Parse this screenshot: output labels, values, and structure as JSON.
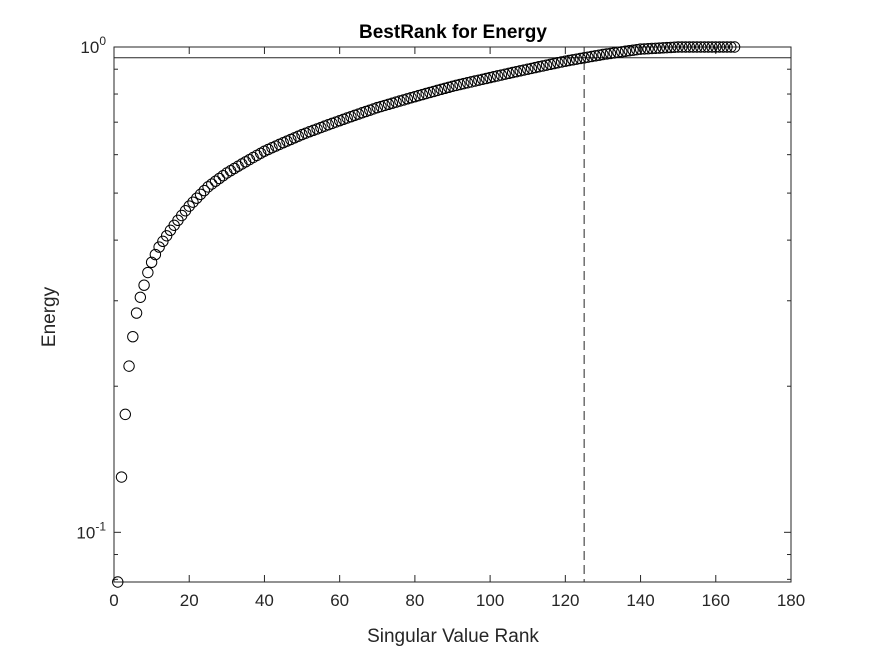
{
  "chart_data": {
    "type": "scatter",
    "title": "BestRank for Energy",
    "xlabel": "Singular Value Rank",
    "ylabel": "Energy",
    "xlim": [
      0,
      180
    ],
    "ylim": [
      0.079,
      1.0
    ],
    "yscale": "log",
    "grid": false,
    "x_ticks": [
      0,
      20,
      40,
      60,
      80,
      100,
      120,
      140,
      160,
      180
    ],
    "y_ticks": [
      {
        "value": 0.1,
        "base": "10",
        "exp": "-1"
      },
      {
        "value": 1.0,
        "base": "10",
        "exp": "0"
      }
    ],
    "marker": "open-circle",
    "marker_color": "#000000",
    "point_count": 165,
    "y_formula_note_hidden": true,
    "anchor_points": {
      "x": [
        1,
        2,
        3,
        4,
        5,
        6,
        7,
        8,
        9,
        10,
        12,
        15,
        20,
        25,
        30,
        40,
        50,
        60,
        70,
        80,
        90,
        100,
        110,
        120,
        125,
        130,
        140,
        150,
        155,
        160,
        165
      ],
      "y": [
        0.079,
        0.13,
        0.175,
        0.22,
        0.253,
        0.283,
        0.305,
        0.323,
        0.343,
        0.36,
        0.387,
        0.419,
        0.47,
        0.515,
        0.55,
        0.61,
        0.66,
        0.705,
        0.75,
        0.79,
        0.83,
        0.865,
        0.9,
        0.935,
        0.95,
        0.965,
        0.99,
        1.0,
        1.0,
        1.0,
        1.0
      ]
    },
    "reference_lines": [
      {
        "orientation": "horizontal",
        "y": 0.95,
        "style": "solid"
      },
      {
        "orientation": "vertical",
        "x": 125,
        "style": "dashed"
      }
    ]
  }
}
